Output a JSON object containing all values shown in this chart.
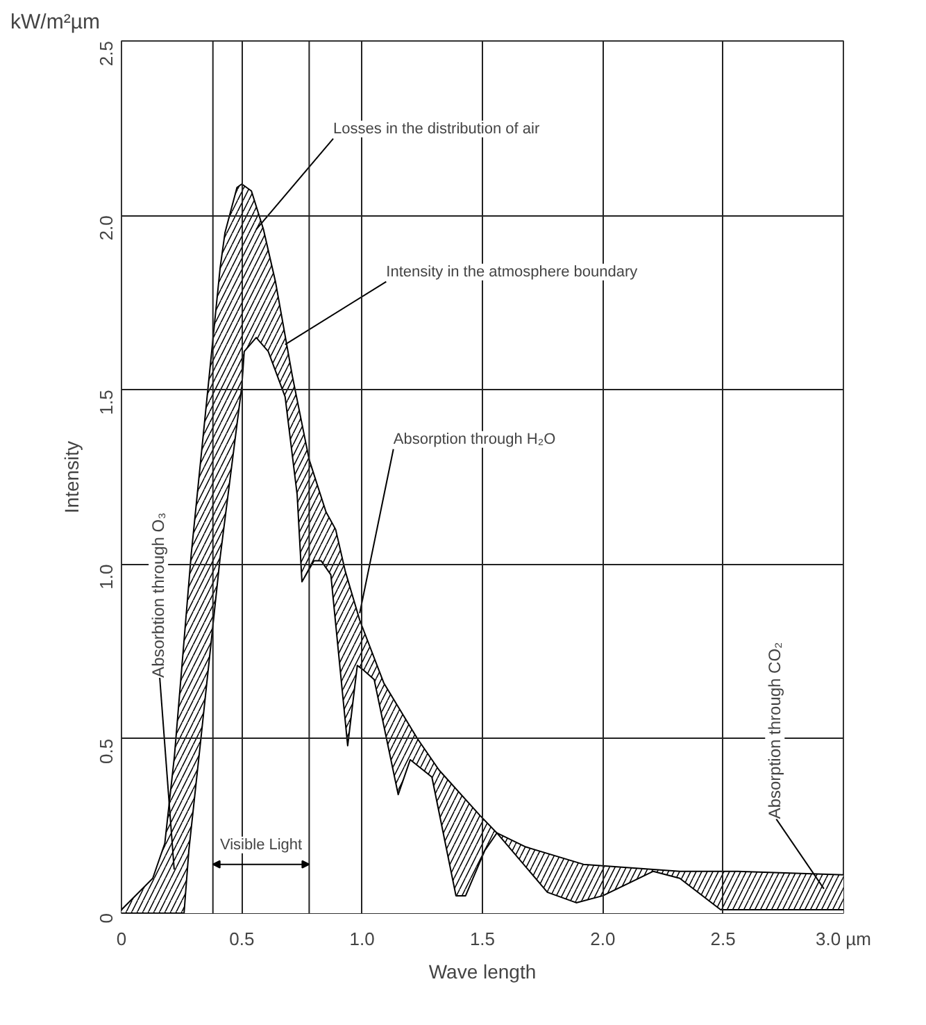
{
  "chart_data": {
    "type": "line",
    "xlabel": "Wave length",
    "ylabel": "Intensity",
    "xlim": [
      0,
      3.0
    ],
    "ylim": [
      0,
      2.5
    ],
    "xticks": [
      0,
      0.5,
      {
        "value": 1,
        "label": "1.0"
      },
      1.5,
      {
        "value": 2,
        "label": "2.0"
      },
      2.5,
      {
        "value": 3,
        "label": "3.0 µm"
      }
    ],
    "yticks": [
      0,
      0.5,
      {
        "value": 1,
        "label": "1.0"
      },
      1.5,
      {
        "value": 2,
        "label": "2.0"
      },
      2.5
    ],
    "grid": true,
    "marker": "none",
    "line_style": "solid",
    "series": [
      {
        "type": "area",
        "color": "#000000",
        "x": [
          0,
          0.13,
          0.18,
          0.22,
          0.29,
          0.41,
          0.43,
          0.48,
          0.5,
          0.54,
          0.59,
          0.64,
          0.71,
          0.78,
          0.85,
          0.89,
          0.93,
          0.99,
          1.09,
          1.23,
          1.32,
          1.49,
          1.56,
          1.68,
          1.92,
          2.32,
          2.56,
          3.0
        ],
        "values": [
          0.01,
          0.1,
          0.2,
          0.45,
          1.03,
          1.85,
          1.95,
          2.08,
          2.09,
          2.07,
          1.96,
          1.81,
          1.54,
          1.3,
          1.15,
          1.1,
          0.98,
          0.84,
          0.66,
          0.5,
          0.41,
          0.28,
          0.23,
          0.19,
          0.14,
          0.12,
          0.12,
          0.11
        ]
      },
      {
        "color": "#000000",
        "x": [
          0,
          0.26,
          0.28,
          0.33,
          0.41,
          0.5,
          0.51,
          0.56,
          0.61,
          0.68,
          0.73,
          0.75,
          0.8,
          0.83,
          0.87,
          0.94,
          0.98,
          1.0,
          1.05,
          1.15,
          1.2,
          1.29,
          1.39,
          1.43,
          1.51,
          1.56,
          1.77,
          1.89,
          2.0,
          2.21,
          2.32,
          2.49,
          3.0
        ],
        "values": [
          0,
          0,
          0.18,
          0.5,
          1.02,
          1.51,
          1.61,
          1.65,
          1.61,
          1.48,
          1.2,
          0.95,
          1.01,
          1.01,
          0.97,
          0.48,
          0.71,
          0.7,
          0.67,
          0.34,
          0.44,
          0.39,
          0.05,
          0.05,
          0.18,
          0.23,
          0.06,
          0.03,
          0.05,
          0.12,
          0.1,
          0.01,
          0.01
        ]
      }
    ],
    "ref_lines": [
      {
        "axis": "x",
        "value": 0.38,
        "label": null
      },
      {
        "axis": "x",
        "value": 0.78,
        "label": null
      }
    ],
    "annotations": [
      "kW/m²µm",
      "Visible Light",
      "Absorbtion through O₃",
      "Absorption through CO₂",
      {
        "text": "Losses in the distribution of air",
        "x": 0.56,
        "y": 1.96
      },
      {
        "text": "Intensity in the atmosphere boundary",
        "x": 0.68,
        "y": 1.63
      },
      {
        "text": "Absorption through H₂O",
        "x": 0.99,
        "y": 0.86
      }
    ]
  }
}
